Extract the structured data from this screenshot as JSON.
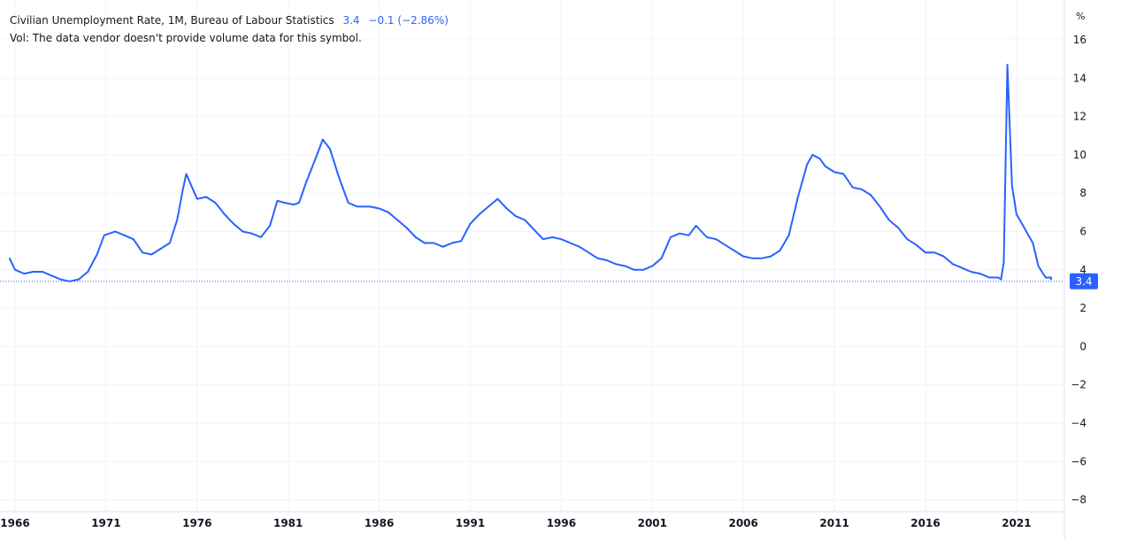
{
  "legend": {
    "title": "Civilian Unemployment Rate, 1M, Bureau of Labour Statistics",
    "last_value": "3.4",
    "change": "−0.1 (−2.86%)",
    "volume_note": "Vol: The data vendor doesn't provide volume data for this symbol."
  },
  "colors": {
    "series": "#2962ff",
    "grid": "#f0f3fa",
    "text": "#131722",
    "border": "#e0e3eb"
  },
  "chart_data": {
    "type": "line",
    "ylabel": "%",
    "ylim": [
      -9,
      17
    ],
    "xlim": [
      1965.7,
      2023.8
    ],
    "grid": true,
    "y_ticks": [
      16,
      14,
      12,
      10,
      8,
      6,
      4,
      2,
      0,
      -2,
      -4,
      -6,
      -8
    ],
    "y_tick_labels": [
      "16",
      "14",
      "12",
      "10",
      "8",
      "6",
      "4",
      "2",
      "0",
      "−2",
      "−4",
      "−6",
      "−8"
    ],
    "x_ticks": [
      1966,
      1971,
      1976,
      1981,
      1986,
      1991,
      1996,
      2001,
      2006,
      2011,
      2016,
      2021
    ],
    "x_tick_labels": [
      "1966",
      "1971",
      "1976",
      "1981",
      "1986",
      "1991",
      "1996",
      "2001",
      "2006",
      "2011",
      "2016",
      "2021"
    ],
    "last_value": 3.4,
    "last_value_label": "3.4",
    "series": [
      {
        "x": [
          1965.7,
          1966.0,
          1966.5,
          1967.0,
          1967.5,
          1968.0,
          1968.5,
          1969.0,
          1969.5,
          1970.0,
          1970.5,
          1970.9,
          1971.5,
          1972.0,
          1972.5,
          1973.0,
          1973.5,
          1974.0,
          1974.5,
          1974.9,
          1975.2,
          1975.4,
          1976.0,
          1976.5,
          1977.0,
          1977.5,
          1978.0,
          1978.5,
          1979.0,
          1979.5,
          1980.0,
          1980.4,
          1980.8,
          1981.3,
          1981.6,
          1982.0,
          1982.5,
          1982.9,
          1983.3,
          1983.8,
          1984.3,
          1984.8,
          1985.5,
          1986.0,
          1986.5,
          1987.0,
          1987.5,
          1988.0,
          1988.5,
          1989.0,
          1989.5,
          1990.0,
          1990.5,
          1991.0,
          1991.5,
          1992.0,
          1992.5,
          1993.0,
          1993.5,
          1994.0,
          1994.5,
          1995.0,
          1995.5,
          1996.0,
          1996.5,
          1997.0,
          1997.5,
          1998.0,
          1998.5,
          1999.0,
          1999.5,
          2000.0,
          2000.5,
          2001.0,
          2001.5,
          2002.0,
          2002.5,
          2003.0,
          2003.4,
          2004.0,
          2004.5,
          2005.0,
          2005.5,
          2006.0,
          2006.5,
          2007.0,
          2007.5,
          2008.0,
          2008.5,
          2009.0,
          2009.5,
          2009.8,
          2010.2,
          2010.5,
          2011.0,
          2011.5,
          2012.0,
          2012.5,
          2013.0,
          2013.5,
          2014.0,
          2014.5,
          2015.0,
          2015.5,
          2016.0,
          2016.5,
          2017.0,
          2017.5,
          2018.0,
          2018.5,
          2019.0,
          2019.5,
          2020.0,
          2020.15,
          2020.3,
          2020.5,
          2020.75,
          2021.0,
          2021.3,
          2021.6,
          2021.9,
          2022.2,
          2022.6,
          2023.0,
          2023.4,
          2023.6
        ],
        "values": [
          4.6,
          4.0,
          3.8,
          3.9,
          3.9,
          3.7,
          3.5,
          3.4,
          3.5,
          3.9,
          4.8,
          5.8,
          6.0,
          5.8,
          5.6,
          4.9,
          4.8,
          5.1,
          5.4,
          6.6,
          8.1,
          9.0,
          7.7,
          7.8,
          7.5,
          6.9,
          6.4,
          6.0,
          5.9,
          5.7,
          6.3,
          7.6,
          7.5,
          7.4,
          7.5,
          8.6,
          9.8,
          10.8,
          10.3,
          8.8,
          7.5,
          7.3,
          7.3,
          7.2,
          7.0,
          6.6,
          6.2,
          5.7,
          5.4,
          5.4,
          5.2,
          5.4,
          5.5,
          6.4,
          6.9,
          7.3,
          7.7,
          7.2,
          6.8,
          6.6,
          6.1,
          5.6,
          5.7,
          5.6,
          5.4,
          5.2,
          4.9,
          4.6,
          4.5,
          4.3,
          4.2,
          4.0,
          4.0,
          4.2,
          4.6,
          5.7,
          5.9,
          5.8,
          6.3,
          5.7,
          5.6,
          5.3,
          5.0,
          4.7,
          4.6,
          4.6,
          4.7,
          5.0,
          5.8,
          7.8,
          9.5,
          10.0,
          9.8,
          9.4,
          9.1,
          9.0,
          8.3,
          8.2,
          7.9,
          7.3,
          6.6,
          6.2,
          5.6,
          5.3,
          4.9,
          4.9,
          4.7,
          4.3,
          4.1,
          3.9,
          3.8,
          3.6,
          3.6,
          3.5,
          4.4,
          14.7,
          8.4,
          6.9,
          6.4,
          5.9,
          5.4,
          4.2,
          3.6,
          3.6,
          3.5,
          3.5
        ]
      }
    ]
  }
}
